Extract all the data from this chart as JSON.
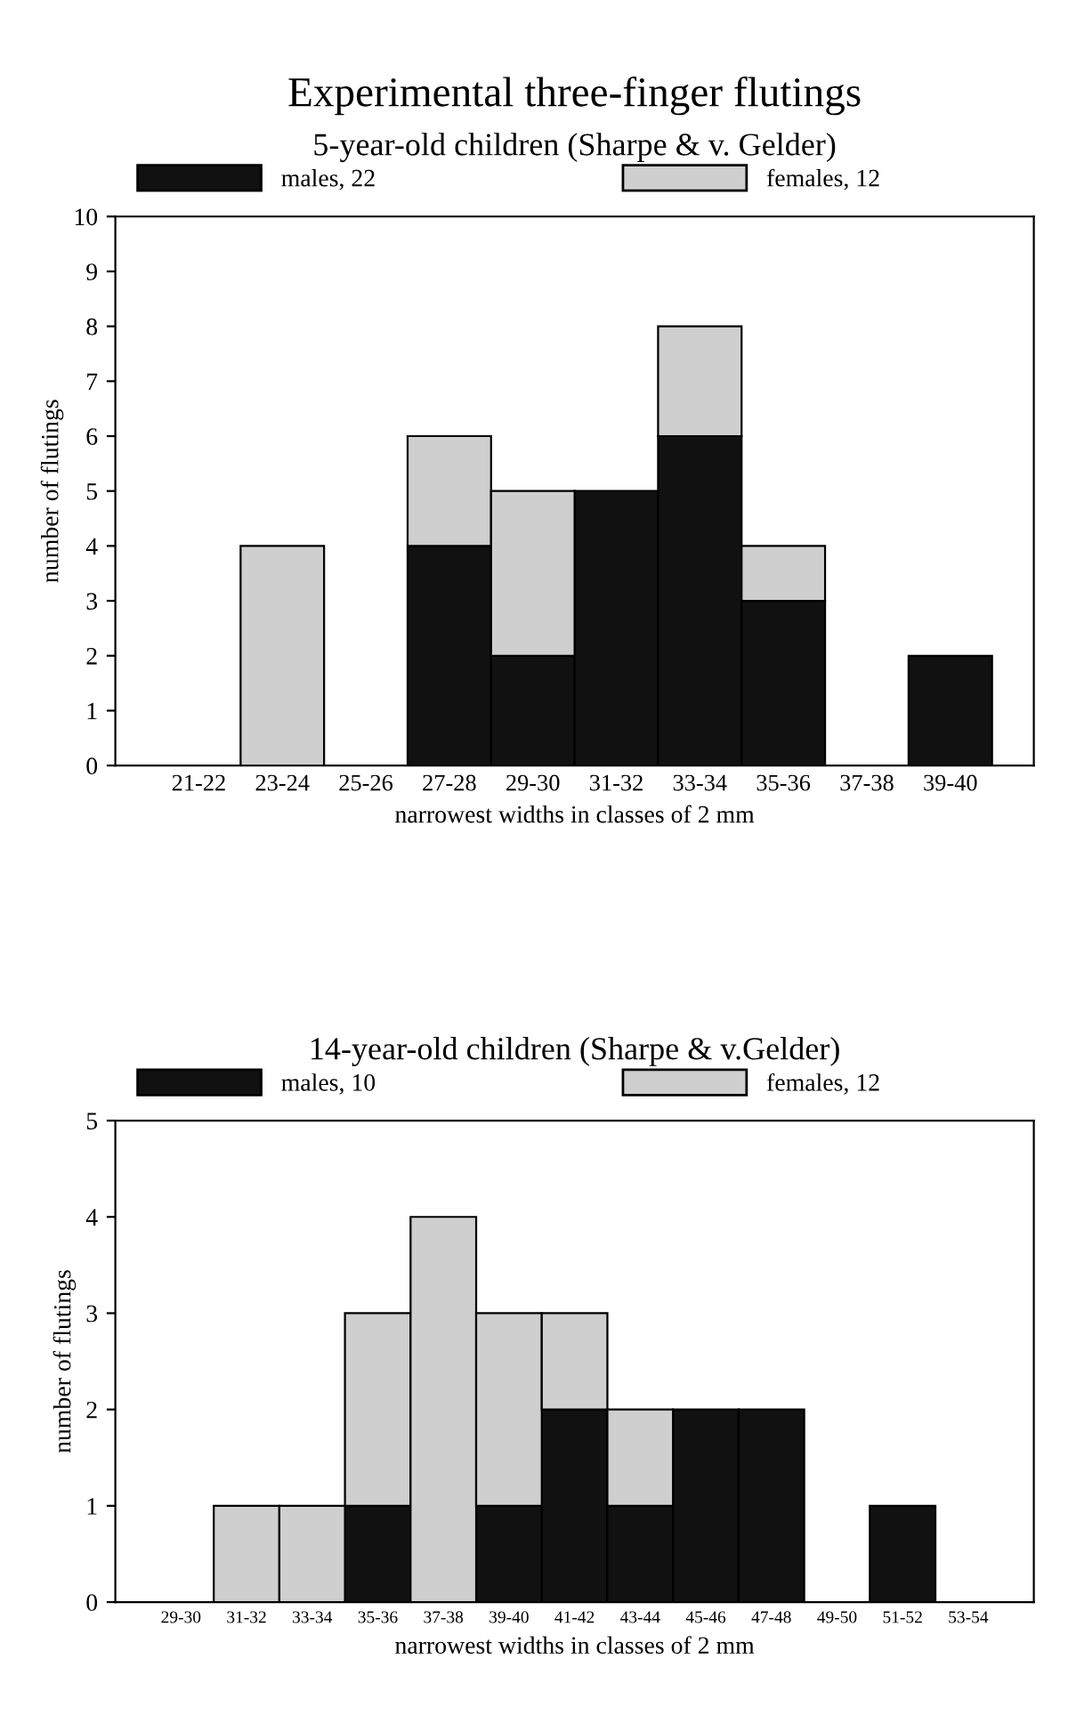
{
  "chart_data": [
    {
      "type": "bar",
      "title": "Experimental three-finger flutings",
      "subtitle": "5-year-old children (Sharpe & v. Gelder)",
      "xlabel": "narrowest widths in classes of 2 mm",
      "ylabel": "number of flutings",
      "categories": [
        "21-22",
        "23-24",
        "25-26",
        "27-28",
        "29-30",
        "31-32",
        "33-34",
        "35-36",
        "37-38",
        "39-40"
      ],
      "stacked": true,
      "legend": "top",
      "ylim": [
        0,
        10
      ],
      "yticks": [
        0,
        1,
        2,
        3,
        4,
        5,
        6,
        7,
        8,
        9,
        10
      ],
      "series": [
        {
          "name": "males, 22",
          "color": "#111111",
          "values": [
            0,
            0,
            0,
            4,
            2,
            5,
            6,
            3,
            0,
            2
          ]
        },
        {
          "name": "females, 12",
          "color": "#cfcfcf",
          "values": [
            0,
            4,
            0,
            2,
            3,
            0,
            2,
            1,
            0,
            0
          ]
        }
      ]
    },
    {
      "type": "bar",
      "title": "14-year-old children (Sharpe & v.Gelder)",
      "xlabel": "narrowest widths in classes of 2 mm",
      "ylabel": "number of flutings",
      "categories": [
        "29-30",
        "31-32",
        "33-34",
        "35-36",
        "37-38",
        "39-40",
        "41-42",
        "43-44",
        "45-46",
        "47-48",
        "49-50",
        "51-52",
        "53-54"
      ],
      "stacked": true,
      "legend": "top",
      "ylim": [
        0,
        5
      ],
      "yticks": [
        0,
        1,
        2,
        3,
        4,
        5
      ],
      "series": [
        {
          "name": "males, 10",
          "color": "#111111",
          "values": [
            0,
            0,
            0,
            1,
            0,
            1,
            2,
            1,
            2,
            2,
            0,
            1,
            0
          ]
        },
        {
          "name": "females, 12",
          "color": "#cfcfcf",
          "values": [
            0,
            1,
            1,
            2,
            4,
            2,
            1,
            1,
            0,
            0,
            0,
            0,
            0
          ]
        }
      ]
    }
  ]
}
